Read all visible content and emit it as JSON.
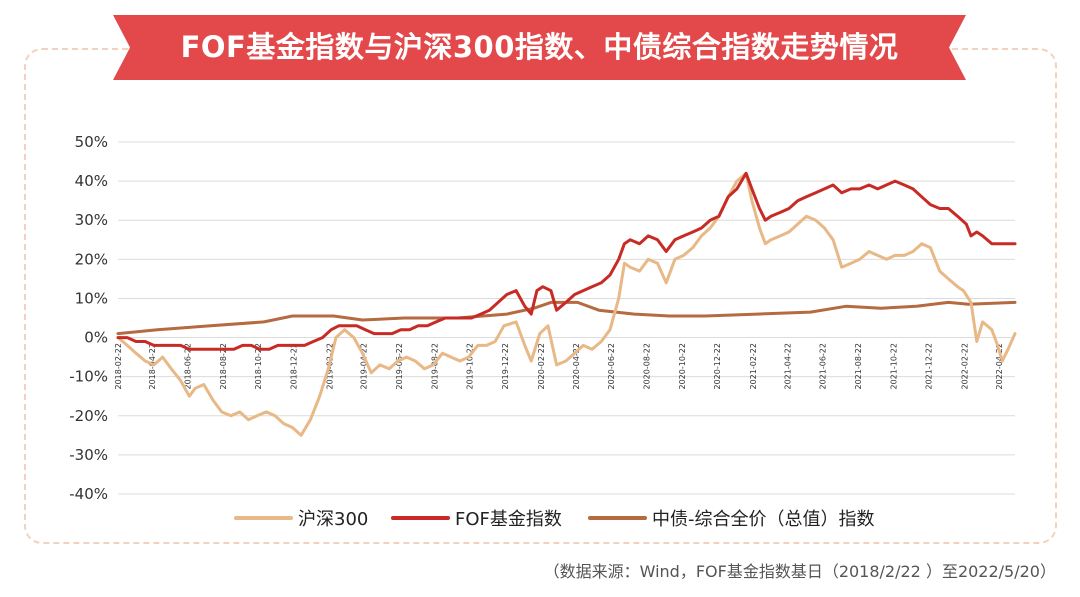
{
  "banner": {
    "title": "FOF基金指数与沪深300指数、中债综合指数走势情况",
    "color": "#e3484a"
  },
  "source_note": "（数据来源：Wind，FOF基金指数基日（2018/2/22 ）至2022/5/20）",
  "chart_data": {
    "type": "line",
    "title": "FOF基金指数与沪深300指数、中债综合指数走势情况",
    "xlabel": "",
    "ylabel": "",
    "ylim": [
      -40,
      50
    ],
    "yticks": [
      -40,
      -30,
      -20,
      -10,
      0,
      10,
      20,
      30,
      40,
      50
    ],
    "ytick_labels": [
      "-40%",
      "-30%",
      "-20%",
      "-10%",
      "0%",
      "10%",
      "20%",
      "30%",
      "40%",
      "50%"
    ],
    "x_range": [
      "2018-02-22",
      "2022-05-20"
    ],
    "xtick_labels": [
      "2018-02-22",
      "2018-04-22",
      "2018-06-22",
      "2018-08-22",
      "2018-10-22",
      "2018-12-22",
      "2019-02-22",
      "2019-04-22",
      "2019-06-22",
      "2019-08-22",
      "2019-10-22",
      "2019-12-22",
      "2020-02-22",
      "2020-04-22",
      "2020-06-22",
      "2020-08-22",
      "2020-10-22",
      "2020-12-22",
      "2021-02-22",
      "2021-04-22",
      "2021-06-22",
      "2021-08-22",
      "2021-10-22",
      "2021-12-22",
      "2022-02-22",
      "2022-04-22"
    ],
    "grid": true,
    "legend_position": "bottom",
    "series": [
      {
        "name": "沪深300",
        "color": "#e8b886",
        "points": [
          [
            "2018-02-22",
            0
          ],
          [
            "2018-03-10",
            -2
          ],
          [
            "2018-03-25",
            -4
          ],
          [
            "2018-04-10",
            -6
          ],
          [
            "2018-04-25",
            -7
          ],
          [
            "2018-05-10",
            -5
          ],
          [
            "2018-05-25",
            -8
          ],
          [
            "2018-06-10",
            -11
          ],
          [
            "2018-06-25",
            -15
          ],
          [
            "2018-07-05",
            -13
          ],
          [
            "2018-07-20",
            -12
          ],
          [
            "2018-08-05",
            -16
          ],
          [
            "2018-08-20",
            -19
          ],
          [
            "2018-09-05",
            -20
          ],
          [
            "2018-09-20",
            -19
          ],
          [
            "2018-10-05",
            -21
          ],
          [
            "2018-10-20",
            -20
          ],
          [
            "2018-11-05",
            -19
          ],
          [
            "2018-11-20",
            -20
          ],
          [
            "2018-12-05",
            -22
          ],
          [
            "2018-12-20",
            -23
          ],
          [
            "2019-01-04",
            -25
          ],
          [
            "2019-01-20",
            -21
          ],
          [
            "2019-02-05",
            -15
          ],
          [
            "2019-02-20",
            -8
          ],
          [
            "2019-03-05",
            0
          ],
          [
            "2019-03-20",
            2
          ],
          [
            "2019-04-05",
            0
          ],
          [
            "2019-04-20",
            -4
          ],
          [
            "2019-05-05",
            -9
          ],
          [
            "2019-05-20",
            -7
          ],
          [
            "2019-06-05",
            -8
          ],
          [
            "2019-06-20",
            -6
          ],
          [
            "2019-07-05",
            -5
          ],
          [
            "2019-07-20",
            -6
          ],
          [
            "2019-08-05",
            -8
          ],
          [
            "2019-08-20",
            -7
          ],
          [
            "2019-09-05",
            -4
          ],
          [
            "2019-09-20",
            -5
          ],
          [
            "2019-10-05",
            -6
          ],
          [
            "2019-10-20",
            -5
          ],
          [
            "2019-11-05",
            -2
          ],
          [
            "2019-11-20",
            -2
          ],
          [
            "2019-12-05",
            -1
          ],
          [
            "2019-12-20",
            3
          ],
          [
            "2020-01-10",
            4
          ],
          [
            "2020-01-25",
            -2
          ],
          [
            "2020-02-05",
            -6
          ],
          [
            "2020-02-20",
            1
          ],
          [
            "2020-03-05",
            3
          ],
          [
            "2020-03-20",
            -7
          ],
          [
            "2020-04-05",
            -6
          ],
          [
            "2020-04-20",
            -4
          ],
          [
            "2020-05-05",
            -2
          ],
          [
            "2020-05-20",
            -3
          ],
          [
            "2020-06-05",
            -1
          ],
          [
            "2020-06-20",
            2
          ],
          [
            "2020-07-05",
            10
          ],
          [
            "2020-07-15",
            19
          ],
          [
            "2020-07-25",
            18
          ],
          [
            "2020-08-10",
            17
          ],
          [
            "2020-08-25",
            20
          ],
          [
            "2020-09-10",
            19
          ],
          [
            "2020-09-25",
            14
          ],
          [
            "2020-10-10",
            20
          ],
          [
            "2020-10-25",
            21
          ],
          [
            "2020-11-10",
            23
          ],
          [
            "2020-11-25",
            26
          ],
          [
            "2020-12-10",
            28
          ],
          [
            "2020-12-25",
            31
          ],
          [
            "2021-01-10",
            36
          ],
          [
            "2021-01-25",
            40
          ],
          [
            "2021-02-10",
            42
          ],
          [
            "2021-02-20",
            35
          ],
          [
            "2021-03-05",
            28
          ],
          [
            "2021-03-15",
            24
          ],
          [
            "2021-03-25",
            25
          ],
          [
            "2021-04-10",
            26
          ],
          [
            "2021-04-25",
            27
          ],
          [
            "2021-05-10",
            29
          ],
          [
            "2021-05-25",
            31
          ],
          [
            "2021-06-10",
            30
          ],
          [
            "2021-06-25",
            28
          ],
          [
            "2021-07-10",
            25
          ],
          [
            "2021-07-25",
            18
          ],
          [
            "2021-08-10",
            19
          ],
          [
            "2021-08-25",
            20
          ],
          [
            "2021-09-10",
            22
          ],
          [
            "2021-09-25",
            21
          ],
          [
            "2021-10-10",
            20
          ],
          [
            "2021-10-25",
            21
          ],
          [
            "2021-11-10",
            21
          ],
          [
            "2021-11-25",
            22
          ],
          [
            "2021-12-10",
            24
          ],
          [
            "2021-12-25",
            23
          ],
          [
            "2022-01-10",
            17
          ],
          [
            "2022-01-25",
            15
          ],
          [
            "2022-02-10",
            13
          ],
          [
            "2022-02-20",
            12
          ],
          [
            "2022-03-05",
            9
          ],
          [
            "2022-03-15",
            -1
          ],
          [
            "2022-03-25",
            4
          ],
          [
            "2022-04-10",
            2
          ],
          [
            "2022-04-20",
            -2
          ],
          [
            "2022-04-28",
            -6
          ],
          [
            "2022-05-08",
            -3
          ],
          [
            "2022-05-20",
            1
          ]
        ]
      },
      {
        "name": "FOF基金指数",
        "color": "#c82b25",
        "points": [
          [
            "2018-02-22",
            0
          ],
          [
            "2018-03-10",
            0
          ],
          [
            "2018-03-25",
            -1
          ],
          [
            "2018-04-10",
            -1
          ],
          [
            "2018-04-25",
            -2
          ],
          [
            "2018-05-10",
            -2
          ],
          [
            "2018-05-25",
            -2
          ],
          [
            "2018-06-10",
            -2
          ],
          [
            "2018-06-25",
            -3
          ],
          [
            "2018-07-10",
            -3
          ],
          [
            "2018-07-25",
            -3
          ],
          [
            "2018-08-10",
            -3
          ],
          [
            "2018-08-25",
            -3
          ],
          [
            "2018-09-10",
            -3
          ],
          [
            "2018-09-25",
            -2
          ],
          [
            "2018-10-10",
            -2
          ],
          [
            "2018-10-25",
            -3
          ],
          [
            "2018-11-10",
            -3
          ],
          [
            "2018-11-25",
            -2
          ],
          [
            "2018-12-10",
            -2
          ],
          [
            "2018-12-25",
            -2
          ],
          [
            "2019-01-10",
            -2
          ],
          [
            "2019-01-25",
            -1
          ],
          [
            "2019-02-10",
            0
          ],
          [
            "2019-02-25",
            2
          ],
          [
            "2019-03-10",
            3
          ],
          [
            "2019-03-25",
            3
          ],
          [
            "2019-04-10",
            3
          ],
          [
            "2019-04-25",
            2
          ],
          [
            "2019-05-10",
            1
          ],
          [
            "2019-05-25",
            1
          ],
          [
            "2019-06-10",
            1
          ],
          [
            "2019-06-25",
            2
          ],
          [
            "2019-07-10",
            2
          ],
          [
            "2019-07-25",
            3
          ],
          [
            "2019-08-10",
            3
          ],
          [
            "2019-08-25",
            4
          ],
          [
            "2019-09-10",
            5
          ],
          [
            "2019-09-25",
            5
          ],
          [
            "2019-10-10",
            5
          ],
          [
            "2019-10-25",
            5
          ],
          [
            "2019-11-10",
            6
          ],
          [
            "2019-11-25",
            7
          ],
          [
            "2019-12-10",
            9
          ],
          [
            "2019-12-25",
            11
          ],
          [
            "2020-01-10",
            12
          ],
          [
            "2020-01-25",
            8
          ],
          [
            "2020-02-05",
            6
          ],
          [
            "2020-02-15",
            12
          ],
          [
            "2020-02-25",
            13
          ],
          [
            "2020-03-10",
            12
          ],
          [
            "2020-03-20",
            7
          ],
          [
            "2020-04-05",
            9
          ],
          [
            "2020-04-20",
            11
          ],
          [
            "2020-05-05",
            12
          ],
          [
            "2020-05-20",
            13
          ],
          [
            "2020-06-05",
            14
          ],
          [
            "2020-06-20",
            16
          ],
          [
            "2020-07-05",
            20
          ],
          [
            "2020-07-15",
            24
          ],
          [
            "2020-07-25",
            25
          ],
          [
            "2020-08-10",
            24
          ],
          [
            "2020-08-25",
            26
          ],
          [
            "2020-09-10",
            25
          ],
          [
            "2020-09-25",
            22
          ],
          [
            "2020-10-10",
            25
          ],
          [
            "2020-10-25",
            26
          ],
          [
            "2020-11-10",
            27
          ],
          [
            "2020-11-25",
            28
          ],
          [
            "2020-12-10",
            30
          ],
          [
            "2020-12-25",
            31
          ],
          [
            "2021-01-10",
            36
          ],
          [
            "2021-01-25",
            38
          ],
          [
            "2021-02-10",
            42
          ],
          [
            "2021-02-20",
            38
          ],
          [
            "2021-03-05",
            33
          ],
          [
            "2021-03-15",
            30
          ],
          [
            "2021-03-25",
            31
          ],
          [
            "2021-04-10",
            32
          ],
          [
            "2021-04-25",
            33
          ],
          [
            "2021-05-10",
            35
          ],
          [
            "2021-05-25",
            36
          ],
          [
            "2021-06-10",
            37
          ],
          [
            "2021-06-25",
            38
          ],
          [
            "2021-07-10",
            39
          ],
          [
            "2021-07-25",
            37
          ],
          [
            "2021-08-10",
            38
          ],
          [
            "2021-08-25",
            38
          ],
          [
            "2021-09-10",
            39
          ],
          [
            "2021-09-25",
            38
          ],
          [
            "2021-10-10",
            39
          ],
          [
            "2021-10-25",
            40
          ],
          [
            "2021-11-10",
            39
          ],
          [
            "2021-11-25",
            38
          ],
          [
            "2021-12-10",
            36
          ],
          [
            "2021-12-25",
            34
          ],
          [
            "2022-01-10",
            33
          ],
          [
            "2022-01-25",
            33
          ],
          [
            "2022-02-10",
            31
          ],
          [
            "2022-02-25",
            29
          ],
          [
            "2022-03-05",
            26
          ],
          [
            "2022-03-15",
            27
          ],
          [
            "2022-03-25",
            26
          ],
          [
            "2022-04-10",
            24
          ],
          [
            "2022-04-25",
            24
          ],
          [
            "2022-05-10",
            24
          ],
          [
            "2022-05-20",
            24
          ]
        ]
      },
      {
        "name": "中债-综合全价（总值）指数",
        "color": "#b56a3f",
        "points": [
          [
            "2018-02-22",
            1
          ],
          [
            "2018-05-01",
            2
          ],
          [
            "2018-08-01",
            3
          ],
          [
            "2018-11-01",
            4
          ],
          [
            "2018-12-20",
            5.5
          ],
          [
            "2019-03-01",
            5.5
          ],
          [
            "2019-04-20",
            4.5
          ],
          [
            "2019-07-01",
            5
          ],
          [
            "2019-10-01",
            5
          ],
          [
            "2019-12-25",
            6
          ],
          [
            "2020-02-10",
            7.5
          ],
          [
            "2020-03-10",
            9
          ],
          [
            "2020-04-25",
            9
          ],
          [
            "2020-06-01",
            7
          ],
          [
            "2020-08-01",
            6
          ],
          [
            "2020-10-01",
            5.5
          ],
          [
            "2020-12-01",
            5.5
          ],
          [
            "2021-03-01",
            6
          ],
          [
            "2021-06-01",
            6.5
          ],
          [
            "2021-08-01",
            8
          ],
          [
            "2021-10-01",
            7.5
          ],
          [
            "2021-12-01",
            8
          ],
          [
            "2022-01-25",
            9
          ],
          [
            "2022-03-01",
            8.5
          ],
          [
            "2022-05-20",
            9
          ]
        ]
      }
    ]
  }
}
